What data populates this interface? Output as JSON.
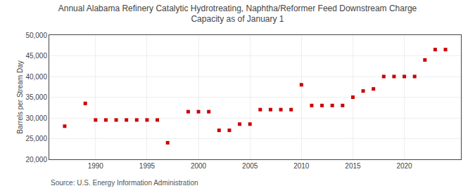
{
  "chart_data": {
    "type": "scatter",
    "title": "Annual Alabama Refinery Catalytic Hydrotreating, Naphtha/Reformer Feed Downstream Charge",
    "subtitle": "Capacity as of January 1",
    "y_label": "Barrels per Stream Day",
    "annotations": [
      "Source: U.S. Energy Information Administration"
    ],
    "x": [
      1987,
      1989,
      1990,
      1991,
      1992,
      1993,
      1994,
      1995,
      1996,
      1997,
      1999,
      2000,
      2001,
      2002,
      2003,
      2004,
      2005,
      2006,
      2007,
      2008,
      2009,
      2010,
      2011,
      2012,
      2013,
      2014,
      2015,
      2016,
      2017,
      2018,
      2019,
      2020,
      2021,
      2022,
      2023,
      2024
    ],
    "values": [
      28000,
      33500,
      29500,
      29500,
      29500,
      29500,
      29500,
      29500,
      29500,
      24000,
      31500,
      31500,
      31500,
      27000,
      27000,
      28500,
      28500,
      32000,
      32000,
      32000,
      32000,
      38000,
      33000,
      33000,
      33000,
      33000,
      35000,
      36500,
      37000,
      40000,
      40000,
      40000,
      40000,
      44000,
      46500,
      46500
    ],
    "color": "#cc0000",
    "marker": "square",
    "xlim": [
      1985.5,
      2025.5
    ],
    "xticks": [
      1990,
      1995,
      2000,
      2005,
      2010,
      2015,
      2020
    ],
    "ylim": [
      20000,
      50000
    ],
    "yticks": [
      {
        "value": 20000,
        "label": "20,000"
      },
      {
        "value": 25000,
        "label": "25,000"
      },
      {
        "value": 30000,
        "label": "30,000"
      },
      {
        "value": 35000,
        "label": "35,000"
      },
      {
        "value": 40000,
        "label": "40,000"
      },
      {
        "value": 45000,
        "label": "45,000"
      },
      {
        "value": 50000,
        "label": "50,000"
      }
    ],
    "grid": true
  }
}
